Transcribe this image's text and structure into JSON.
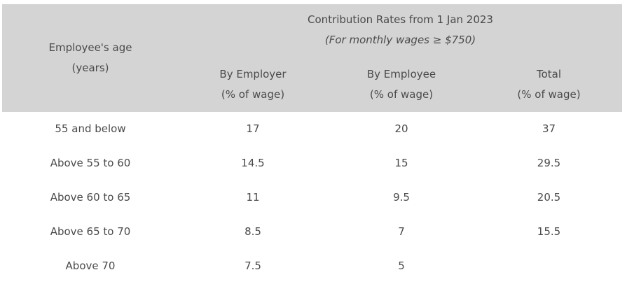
{
  "table": {
    "header": {
      "age_line1": "Employee's age",
      "age_line2": "(years)",
      "group_title": "Contribution Rates from 1 Jan 2023",
      "group_subtitle": "(For monthly wages ≥ $750)",
      "columns": [
        {
          "line1": "By Employer",
          "line2": "(% of wage)"
        },
        {
          "line1": "By Employee",
          "line2": "(% of wage)"
        },
        {
          "line1": "Total",
          "line2": "(% of wage)"
        }
      ]
    },
    "rows": [
      {
        "age": "55 and below",
        "employer": "17",
        "employee": "20",
        "total": "37"
      },
      {
        "age": "Above 55 to 60",
        "employer": "14.5",
        "employee": "15",
        "total": "29.5"
      },
      {
        "age": "Above 60 to 65",
        "employer": "11",
        "employee": "9.5",
        "total": "20.5"
      },
      {
        "age": "Above 65 to 70",
        "employer": "8.5",
        "employee": "7",
        "total": "15.5"
      },
      {
        "age": "Above 70",
        "employer": "7.5",
        "employee": "5",
        "total": ""
      }
    ]
  }
}
